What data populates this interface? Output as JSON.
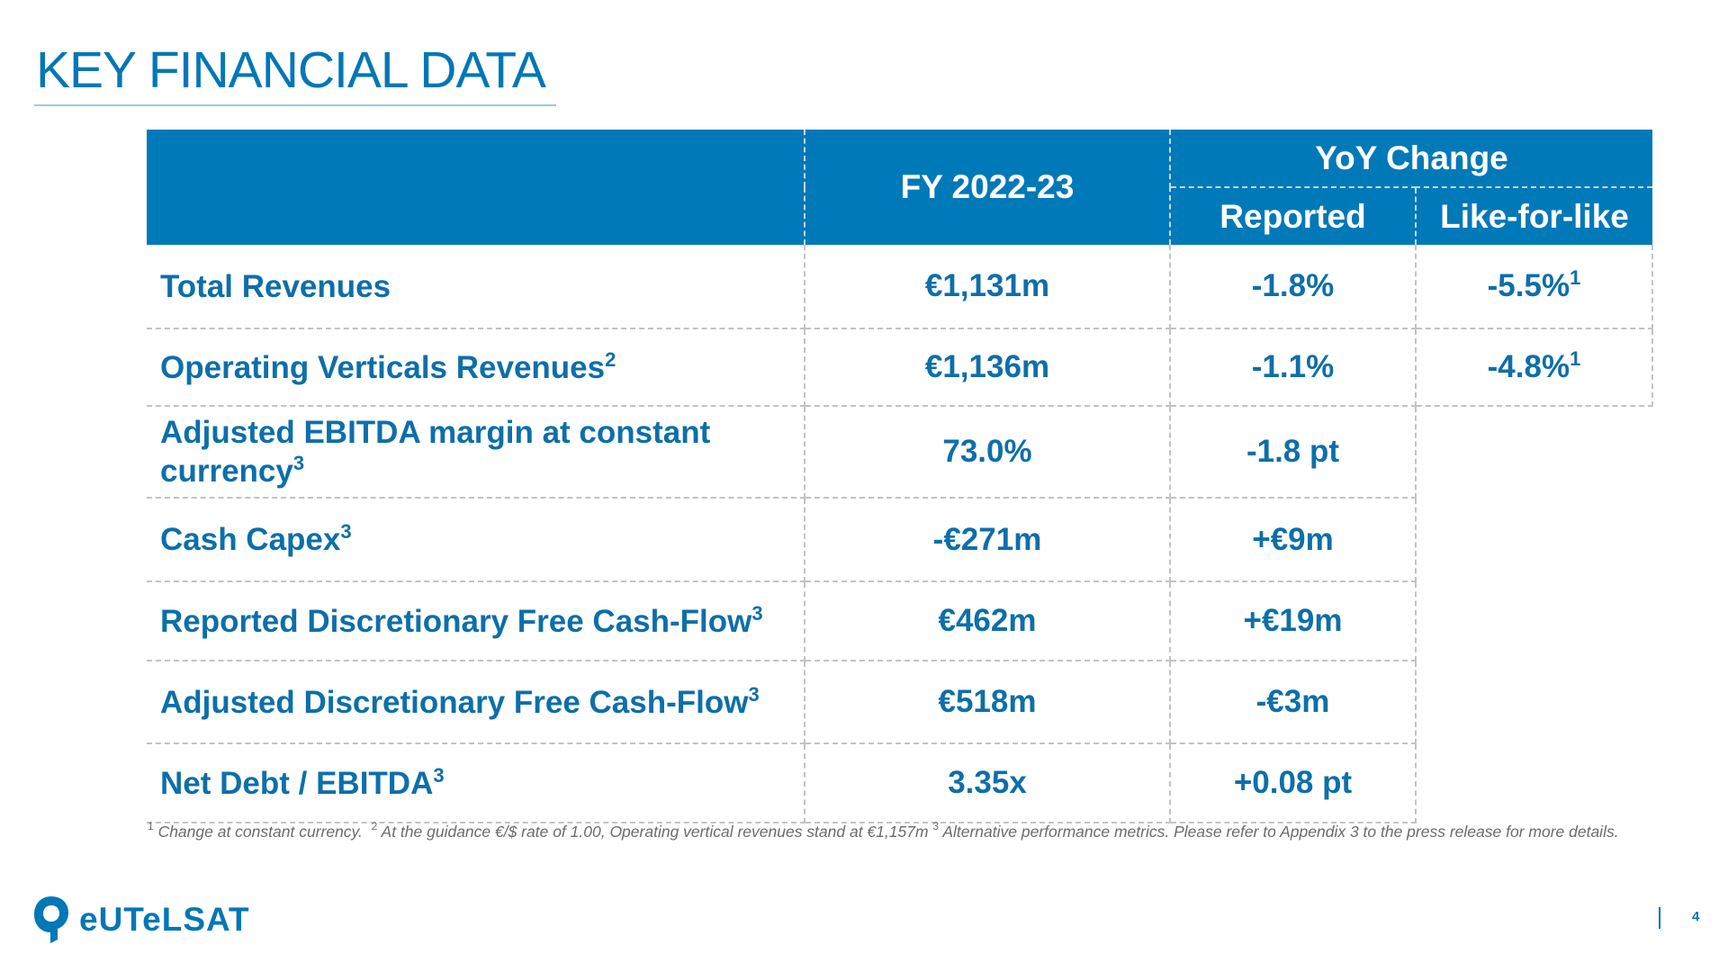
{
  "title": "KEY FINANCIAL DATA",
  "table": {
    "header": {
      "fy": "FY 2022-23",
      "yoy": "YoY Change",
      "reported": "Reported",
      "lfl": "Like-for-like"
    },
    "rows": [
      {
        "label": "Total Revenues",
        "label_sup": "",
        "fy": "€1,131m",
        "reported": "-1.8%",
        "lfl": "-5.5%",
        "lfl_sup": "1"
      },
      {
        "label": "Operating Verticals Revenues",
        "label_sup": "2",
        "fy": "€1,136m",
        "reported": "-1.1%",
        "lfl": "-4.8%",
        "lfl_sup": "1"
      },
      {
        "label_line1": "Adjusted EBITDA margin at constant",
        "label_line2": "currency",
        "label_sup": "3",
        "fy": "73.0%",
        "reported": "-1.8 pt"
      },
      {
        "label": "Cash Capex",
        "label_sup": "3",
        "fy": "-€271m",
        "reported": "+€9m"
      },
      {
        "label": "Reported Discretionary Free Cash-Flow",
        "label_sup": "3",
        "fy": "€462m",
        "reported": "+€19m"
      },
      {
        "label": "Adjusted Discretionary Free Cash-Flow",
        "label_sup": "3",
        "fy": "€518m",
        "reported": "-€3m"
      },
      {
        "label": "Net Debt / EBITDA",
        "label_sup": "3",
        "fy": "3.35x",
        "reported": "+0.08 pt"
      }
    ]
  },
  "footnote": {
    "n1": "1",
    "t1": "Change at constant currency.",
    "n2": "2",
    "t2": "At the guidance €/$ rate of 1.00, Operating vertical revenues stand at €1,157m",
    "n3": "3",
    "t3": "Alternative performance metrics. Please refer to Appendix 3 to the press release for more details."
  },
  "logo": {
    "text": "eUTeLSAT",
    "icon": "eutelsat-logo-icon"
  },
  "page_number": "4",
  "colors": {
    "brand_blue": "#0077b6",
    "header_bg": "#0079b9",
    "footnote_gray": "#6c6c6c"
  }
}
